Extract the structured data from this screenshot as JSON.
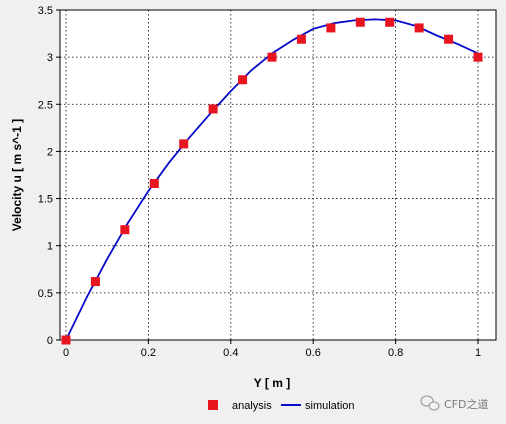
{
  "chart_data": {
    "type": "line",
    "xlabel": "Y [ m ]",
    "ylabel": "Velocity u [ m s^-1 ]",
    "xlim": [
      0,
      1
    ],
    "ylim": [
      0,
      3.5
    ],
    "x_ticks": [
      "0",
      "0.2",
      "0.4",
      "0.6",
      "0.8",
      "1"
    ],
    "y_ticks": [
      "0",
      "0.5",
      "1",
      "1.5",
      "2",
      "2.5",
      "3",
      "3.5"
    ],
    "grid": true,
    "legend_position": "bottom",
    "series": [
      {
        "name": "analysis",
        "kind": "scatter",
        "marker": "square",
        "color": "#e8141f",
        "x": [
          0,
          0.0714,
          0.1429,
          0.2143,
          0.2857,
          0.3571,
          0.4286,
          0.5,
          0.5714,
          0.6429,
          0.7143,
          0.7857,
          0.8571,
          0.9286,
          1.0
        ],
        "y": [
          0.0,
          0.62,
          1.17,
          1.66,
          2.08,
          2.45,
          2.76,
          3.0,
          3.19,
          3.31,
          3.37,
          3.37,
          3.31,
          3.19,
          3.0
        ]
      },
      {
        "name": "simulation",
        "kind": "line",
        "color": "#0a0ac8",
        "x": [
          0,
          0.05,
          0.1,
          0.15,
          0.2,
          0.25,
          0.3,
          0.35,
          0.4,
          0.45,
          0.5,
          0.55,
          0.6,
          0.65,
          0.7,
          0.75,
          0.8,
          0.85,
          0.9,
          0.95,
          1.0
        ],
        "y": [
          0.0,
          0.45,
          0.86,
          1.24,
          1.58,
          1.88,
          2.15,
          2.4,
          2.64,
          2.86,
          3.04,
          3.18,
          3.3,
          3.36,
          3.39,
          3.4,
          3.39,
          3.33,
          3.23,
          3.14,
          3.04
        ]
      }
    ]
  },
  "watermark": {
    "text": "CFD之道",
    "icon": "wechat-icon"
  }
}
